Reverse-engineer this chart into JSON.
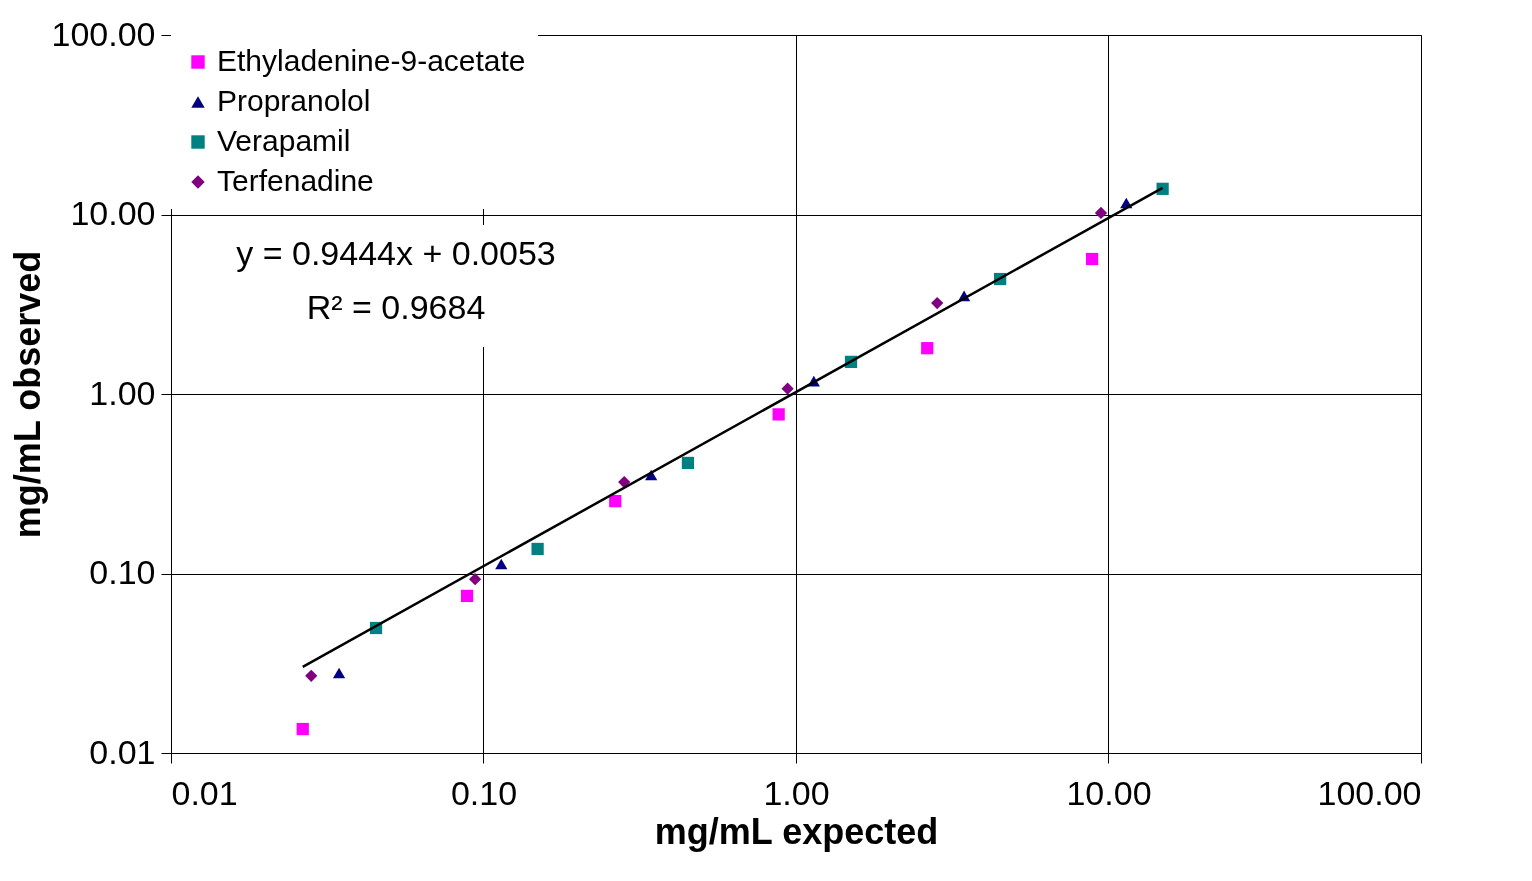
{
  "chart_data": {
    "type": "scatter",
    "xlabel": "mg/mL expected",
    "ylabel": "mg/mL observed",
    "log": "xy",
    "grid": true,
    "legend": "top left",
    "xlim": [
      0.01,
      100
    ],
    "ylim": [
      0.01,
      100
    ],
    "xticks": [
      0.01,
      {
        "value": 0.1,
        "label": "0.10"
      },
      {
        "value": 1,
        "label": "1.00"
      },
      {
        "value": 10,
        "label": "10.00"
      },
      {
        "value": 100,
        "label": "100.00"
      }
    ],
    "yticks": [
      0.01,
      {
        "value": 0.1,
        "label": "0.10"
      },
      {
        "value": 1,
        "label": "1.00"
      },
      {
        "value": 10,
        "label": "10.00"
      },
      {
        "value": 100,
        "label": "100.00"
      }
    ],
    "annotations": [
      "y = 0.9444x + 0.0053",
      "R² = 0.9684"
    ],
    "series": [
      {
        "name": "Ethyladenine-9-acetate",
        "color": "#ff00ff",
        "marker": "square",
        "x": [
          0.0264,
          0.0886,
          0.264,
          0.88,
          2.63,
          8.86
        ],
        "values": [
          0.0136,
          0.075,
          0.253,
          0.77,
          1.8,
          5.65
        ]
      },
      {
        "name": "Propranolol",
        "color": "#000080",
        "marker": "triangle",
        "x": [
          0.0345,
          0.114,
          0.344,
          1.14,
          3.45,
          11.4
        ],
        "values": [
          0.0279,
          0.113,
          0.354,
          1.18,
          3.52,
          11.6
        ]
      },
      {
        "name": "Verapamil",
        "color": "#008080",
        "marker": "square",
        "x": [
          0.0453,
          0.149,
          0.451,
          1.5,
          4.5,
          14.9
        ],
        "values": [
          0.0497,
          0.137,
          0.413,
          1.51,
          4.37,
          13.9
        ]
      },
      {
        "name": "Terfenadine",
        "color": "#800080",
        "marker": "diamond",
        "x": [
          0.0281,
          0.094,
          0.282,
          0.94,
          2.83,
          9.46
        ],
        "values": [
          0.0269,
          0.093,
          0.323,
          1.07,
          3.21,
          10.2
        ]
      },
      {
        "type": "line",
        "color": "#000000",
        "marker": "none",
        "x": [
          0.0264,
          14.9
        ],
        "values": [
          0.0302,
          14.08
        ]
      }
    ]
  }
}
